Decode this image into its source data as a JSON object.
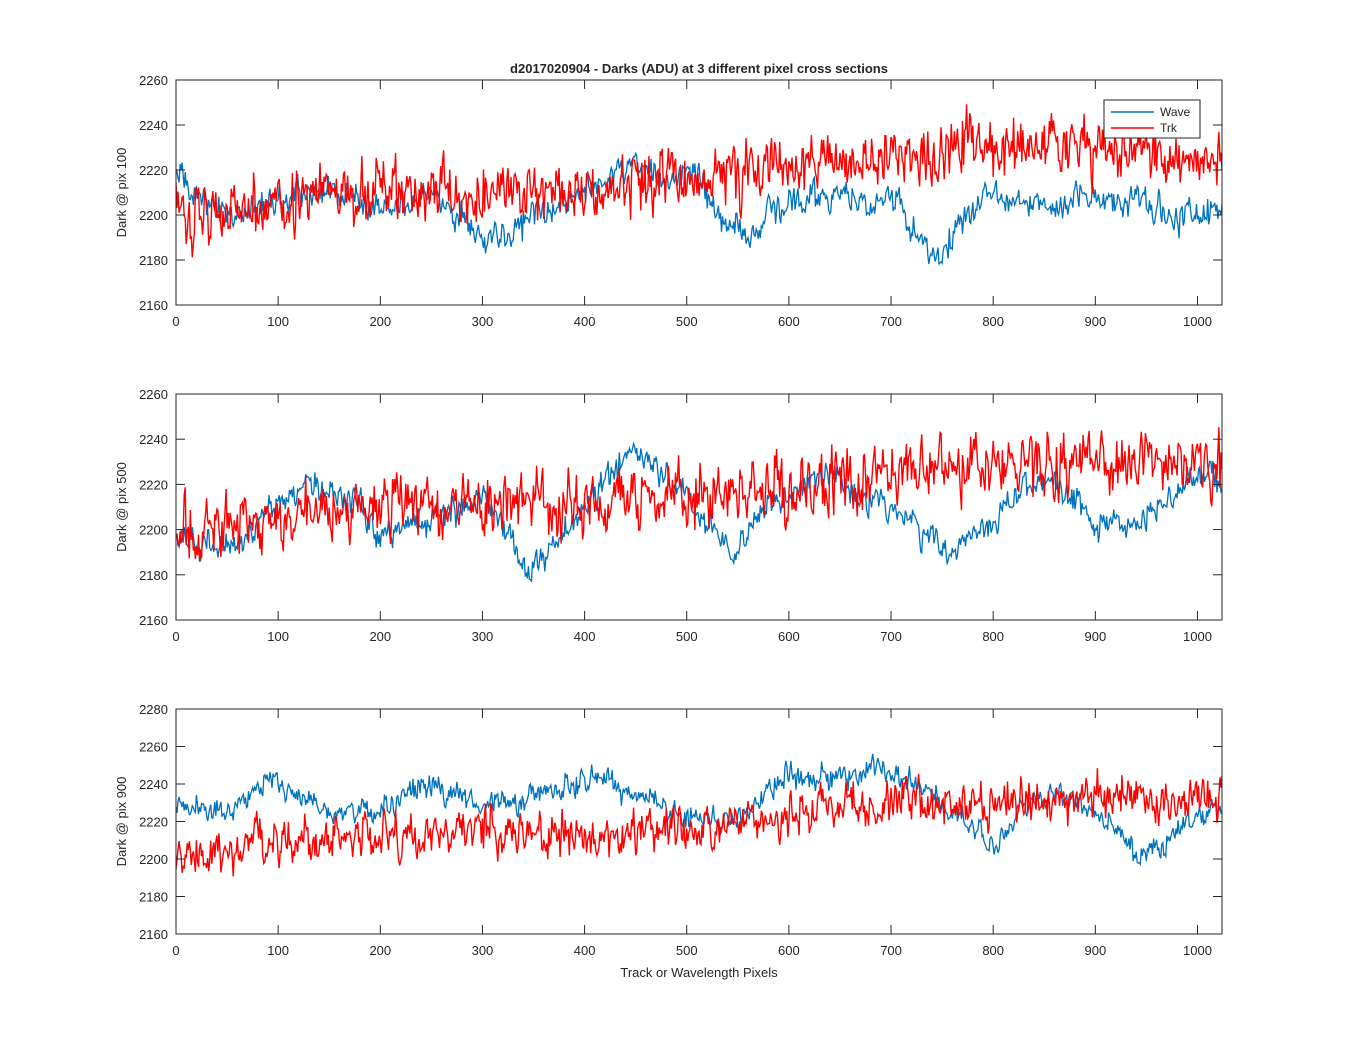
{
  "figure": {
    "title": "d2017020904 - Darks (ADU) at 3 different pixel cross sections",
    "xlabel": "Track or Wavelength Pixels"
  },
  "legend": {
    "placement": "top-right of first panel",
    "entries": [
      "Wave",
      "Trk"
    ]
  },
  "colors": {
    "Wave": "#0072BD",
    "Trk": "#FF0000",
    "axis": "#262626"
  },
  "chart_data": [
    {
      "type": "line",
      "ylabel": "Dark @ pix 100",
      "xlim": [
        0,
        1024
      ],
      "ylim": [
        2160,
        2260
      ],
      "xticks": [
        0,
        100,
        200,
        300,
        400,
        500,
        600,
        700,
        800,
        900,
        1000
      ],
      "yticks": [
        2160,
        2180,
        2200,
        2220,
        2240,
        2260
      ],
      "series": [
        {
          "name": "Wave",
          "color": "#0072BD",
          "noise": 5,
          "x": [
            0,
            30,
            60,
            100,
            150,
            200,
            250,
            280,
            300,
            330,
            350,
            380,
            420,
            450,
            480,
            500,
            520,
            540,
            560,
            580,
            600,
            640,
            680,
            700,
            720,
            745,
            770,
            800,
            830,
            860,
            900,
            950,
            980,
            1024
          ],
          "values": [
            2218,
            2205,
            2200,
            2208,
            2210,
            2204,
            2210,
            2200,
            2190,
            2192,
            2200,
            2205,
            2215,
            2225,
            2215,
            2220,
            2208,
            2195,
            2190,
            2200,
            2205,
            2210,
            2205,
            2210,
            2195,
            2178,
            2200,
            2210,
            2205,
            2205,
            2210,
            2205,
            2200,
            2203
          ]
        },
        {
          "name": "Trk",
          "color": "#FF0000",
          "noise": 10,
          "x": [
            0,
            100,
            200,
            300,
            400,
            500,
            600,
            700,
            800,
            900,
            1024
          ],
          "values": [
            2200,
            2208,
            2210,
            2208,
            2212,
            2216,
            2222,
            2228,
            2230,
            2228,
            2226
          ]
        }
      ]
    },
    {
      "type": "line",
      "ylabel": "Dark @ pix 500",
      "xlim": [
        0,
        1024
      ],
      "ylim": [
        2160,
        2260
      ],
      "xticks": [
        0,
        100,
        200,
        300,
        400,
        500,
        600,
        700,
        800,
        900,
        1000
      ],
      "yticks": [
        2160,
        2180,
        2200,
        2220,
        2240,
        2260
      ],
      "series": [
        {
          "name": "Wave",
          "color": "#0072BD",
          "noise": 5,
          "x": [
            0,
            50,
            100,
            130,
            180,
            200,
            250,
            300,
            345,
            400,
            450,
            500,
            545,
            580,
            630,
            700,
            760,
            800,
            850,
            880,
            900,
            950,
            1000,
            1024
          ],
          "values": [
            2195,
            2192,
            2210,
            2222,
            2210,
            2198,
            2205,
            2215,
            2182,
            2210,
            2235,
            2215,
            2188,
            2210,
            2225,
            2210,
            2190,
            2205,
            2225,
            2215,
            2200,
            2205,
            2225,
            2222
          ]
        },
        {
          "name": "Trk",
          "color": "#FF0000",
          "noise": 10,
          "x": [
            0,
            100,
            200,
            300,
            400,
            500,
            600,
            700,
            800,
            900,
            1024
          ],
          "values": [
            2198,
            2205,
            2210,
            2212,
            2212,
            2215,
            2220,
            2224,
            2228,
            2230,
            2228
          ]
        }
      ]
    },
    {
      "type": "line",
      "ylabel": "Dark @ pix 900",
      "xlim": [
        0,
        1024
      ],
      "ylim": [
        2160,
        2280
      ],
      "xticks": [
        0,
        100,
        200,
        300,
        400,
        500,
        600,
        700,
        800,
        900,
        1000
      ],
      "yticks": [
        2160,
        2180,
        2200,
        2220,
        2240,
        2260,
        2280
      ],
      "series": [
        {
          "name": "Wave",
          "color": "#0072BD",
          "noise": 5,
          "x": [
            0,
            50,
            90,
            150,
            200,
            240,
            300,
            350,
            420,
            460,
            500,
            550,
            600,
            650,
            690,
            750,
            800,
            830,
            870,
            920,
            940,
            970,
            1000,
            1024
          ],
          "values": [
            2228,
            2225,
            2243,
            2225,
            2225,
            2240,
            2228,
            2235,
            2243,
            2232,
            2222,
            2222,
            2245,
            2242,
            2250,
            2230,
            2205,
            2230,
            2235,
            2220,
            2200,
            2210,
            2225,
            2226
          ]
        },
        {
          "name": "Trk",
          "color": "#FF0000",
          "noise": 9,
          "x": [
            0,
            100,
            200,
            300,
            400,
            500,
            600,
            700,
            800,
            900,
            1024
          ],
          "values": [
            2198,
            2210,
            2212,
            2215,
            2212,
            2215,
            2225,
            2228,
            2230,
            2232,
            2230
          ]
        }
      ]
    }
  ]
}
